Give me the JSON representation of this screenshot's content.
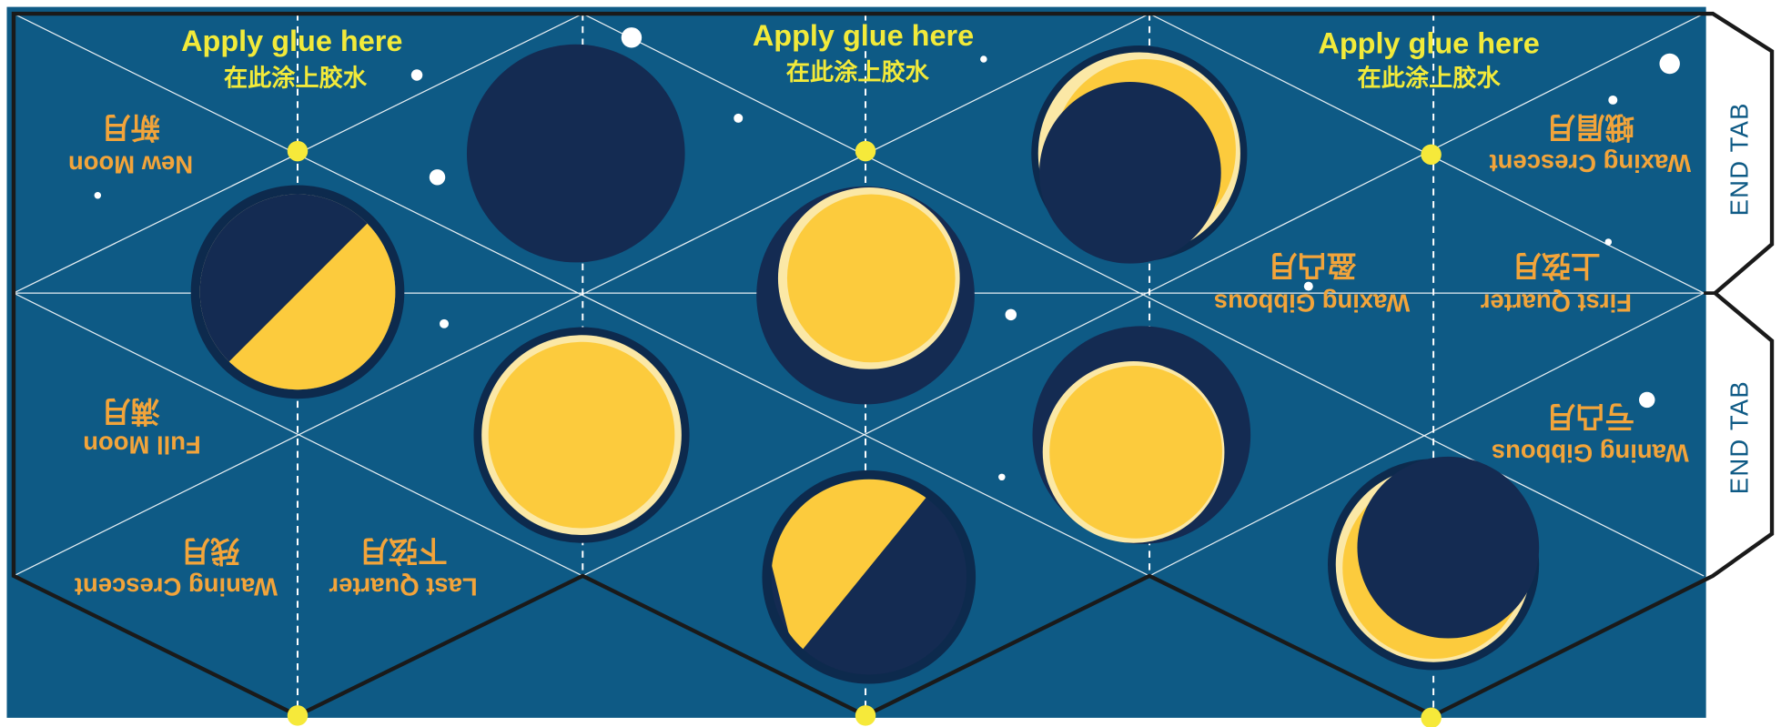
{
  "glue": [
    {
      "en": "Apply glue here",
      "zh": "在此涂上胶水"
    },
    {
      "en": "Apply glue here",
      "zh": "在此涂上胶水"
    },
    {
      "en": "Apply glue here",
      "zh": "在此涂上胶水"
    }
  ],
  "labels": [
    {
      "en": "New Moon",
      "zh": "新月"
    },
    {
      "en": "Full Moon",
      "zh": "满月"
    },
    {
      "en": "Waning Crescent",
      "zh": "残月"
    },
    {
      "en": "Last Quarter",
      "zh": "下弦月"
    },
    {
      "en": "Waxing Crescent",
      "zh": "蛾眉月"
    },
    {
      "en": "Waxing Gibbous",
      "zh": "盈凸月"
    },
    {
      "en": "First Quarter",
      "zh": "上弦月"
    },
    {
      "en": "Waning Gibbous",
      "zh": "亏凸月"
    }
  ],
  "end_tabs": [
    "END TAB",
    "END TAB"
  ]
}
